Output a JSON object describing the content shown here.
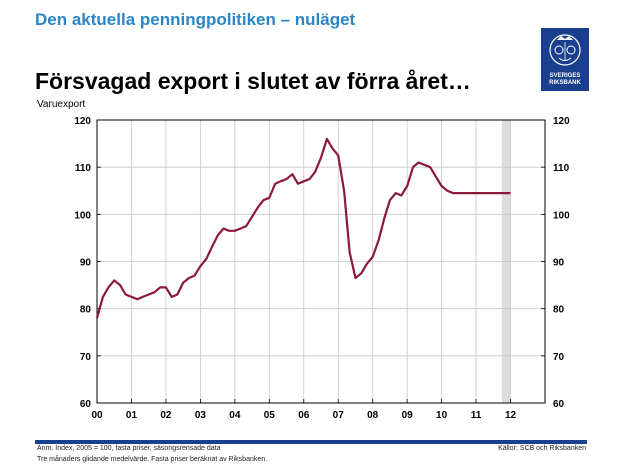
{
  "header": {
    "title": "Den aktuella penningpolitiken – nuläget"
  },
  "logo": {
    "line1": "SVERIGES",
    "line2": "RIKSBANK",
    "color": "#1b3f8f"
  },
  "slide": {
    "title": "Försvagad export i slutet av förra året…"
  },
  "chart_data": {
    "type": "line",
    "subtitle": "Varuexport",
    "x_tick_labels": [
      "00",
      "01",
      "02",
      "03",
      "04",
      "05",
      "06",
      "07",
      "08",
      "09",
      "10",
      "11",
      "12"
    ],
    "xlim": [
      2000.0,
      2013.0
    ],
    "ylim": [
      60,
      120
    ],
    "y_ticks": [
      60,
      70,
      80,
      90,
      100,
      110,
      120
    ],
    "y_tick_labels": [
      "60",
      "70",
      "80",
      "90",
      "100",
      "110",
      "120"
    ],
    "grid": true,
    "secondary_y_axis": true,
    "shaded_region": [
      2011.75,
      2012.0
    ],
    "series": [
      {
        "color": "#8b1a3a",
        "x": [
          2000.0,
          2000.17,
          2000.33,
          2000.5,
          2000.67,
          2000.83,
          2001.0,
          2001.17,
          2001.33,
          2001.5,
          2001.67,
          2001.83,
          2002.0,
          2002.17,
          2002.33,
          2002.5,
          2002.67,
          2002.83,
          2003.0,
          2003.17,
          2003.33,
          2003.5,
          2003.67,
          2003.83,
          2004.0,
          2004.17,
          2004.33,
          2004.5,
          2004.67,
          2004.83,
          2005.0,
          2005.17,
          2005.33,
          2005.5,
          2005.67,
          2005.83,
          2006.0,
          2006.17,
          2006.33,
          2006.5,
          2006.67,
          2006.83,
          2007.0,
          2007.17,
          2007.33,
          2007.5,
          2007.67,
          2007.83,
          2008.0,
          2008.17,
          2008.33,
          2008.5,
          2008.67,
          2008.83,
          2009.0,
          2009.17,
          2009.33,
          2009.5,
          2009.67,
          2009.83,
          2010.0,
          2010.17,
          2010.33,
          2010.5,
          2010.67,
          2010.83,
          2011.0,
          2011.17,
          2011.33,
          2011.5,
          2011.67,
          2011.83,
          2012.0
        ],
        "y": [
          78,
          82.5,
          84.5,
          86,
          85,
          83,
          82.5,
          82,
          82.5,
          83,
          83.5,
          84.5,
          84.5,
          82.5,
          83,
          85.5,
          86.5,
          87,
          89,
          90.5,
          93,
          95.5,
          97,
          96.5,
          96.5,
          97,
          97.5,
          99.5,
          101.5,
          103,
          103.5,
          106.5,
          107,
          107.5,
          108.5,
          106.5,
          107,
          107.5,
          109,
          112,
          116,
          114,
          112.5,
          105,
          92,
          86.5,
          87.5,
          89.5,
          91,
          94.5,
          99,
          103,
          104.5,
          104,
          106,
          110,
          111,
          110.5,
          110,
          108,
          106,
          105,
          104.5,
          104.5,
          104.5,
          104.5,
          104.5,
          104.5,
          104.5,
          104.5,
          104.5,
          104.5,
          104.5
        ]
      }
    ]
  },
  "footer": {
    "note_line1": "Anm. Index, 2005 = 100, fasta priser, säsongsrensade data",
    "note_line2": "Tre månaders glidande medelvärde. Fasta priser beräknat av Riksbanken.",
    "source": "Källor: SCB och Riksbanken"
  }
}
